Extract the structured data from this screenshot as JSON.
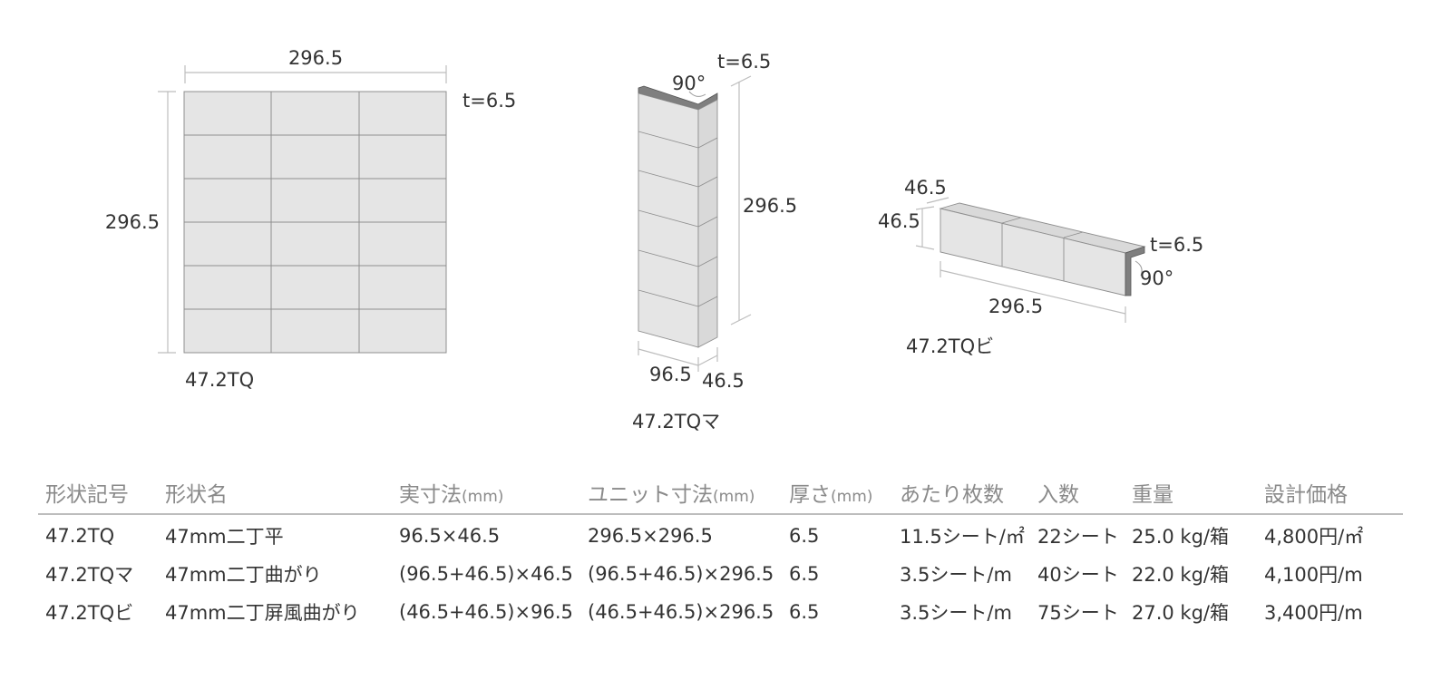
{
  "diagram": {
    "flat": {
      "width_label": "296.5",
      "height_label": "296.5",
      "thickness_label": "t=6.5",
      "name": "47.2TQ"
    },
    "corner": {
      "angle_label": "90°",
      "thickness_label": "t=6.5",
      "height_label": "296.5",
      "front_width_label": "96.5",
      "side_width_label": "46.5",
      "name": "47.2TQマ"
    },
    "edge": {
      "top_label": "46.5",
      "side_label": "46.5",
      "thickness_label": "t=6.5",
      "angle_label": "90°",
      "length_label": "296.5",
      "name": "47.2TQビ"
    }
  },
  "table": {
    "headers": [
      {
        "text": "形状記号",
        "unit": ""
      },
      {
        "text": "形状名",
        "unit": ""
      },
      {
        "text": "実寸法",
        "unit": "(mm)"
      },
      {
        "text": "ユニット寸法",
        "unit": "(mm)"
      },
      {
        "text": "厚さ",
        "unit": "(mm)"
      },
      {
        "text": "あたり枚数",
        "unit": ""
      },
      {
        "text": "入数",
        "unit": ""
      },
      {
        "text": "重量",
        "unit": ""
      },
      {
        "text": "設計価格",
        "unit": ""
      }
    ],
    "rows": [
      [
        "47.2TQ",
        "47mm二丁平",
        "96.5×46.5",
        "296.5×296.5",
        "6.5",
        "11.5シート/㎡",
        "22シート",
        "25.0 kg/箱",
        "4,800円/㎡"
      ],
      [
        "47.2TQマ",
        "47mm二丁曲がり",
        "(96.5+46.5)×46.5",
        "(96.5+46.5)×296.5",
        "6.5",
        "3.5シート/m",
        "40シート",
        "22.0 kg/箱",
        "4,100円/m"
      ],
      [
        "47.2TQビ",
        "47mm二丁屏風曲がり",
        "(46.5+46.5)×96.5",
        "(46.5+46.5)×296.5",
        "6.5",
        "3.5シート/m",
        "75シート",
        "27.0 kg/箱",
        "3,400円/m"
      ]
    ]
  }
}
